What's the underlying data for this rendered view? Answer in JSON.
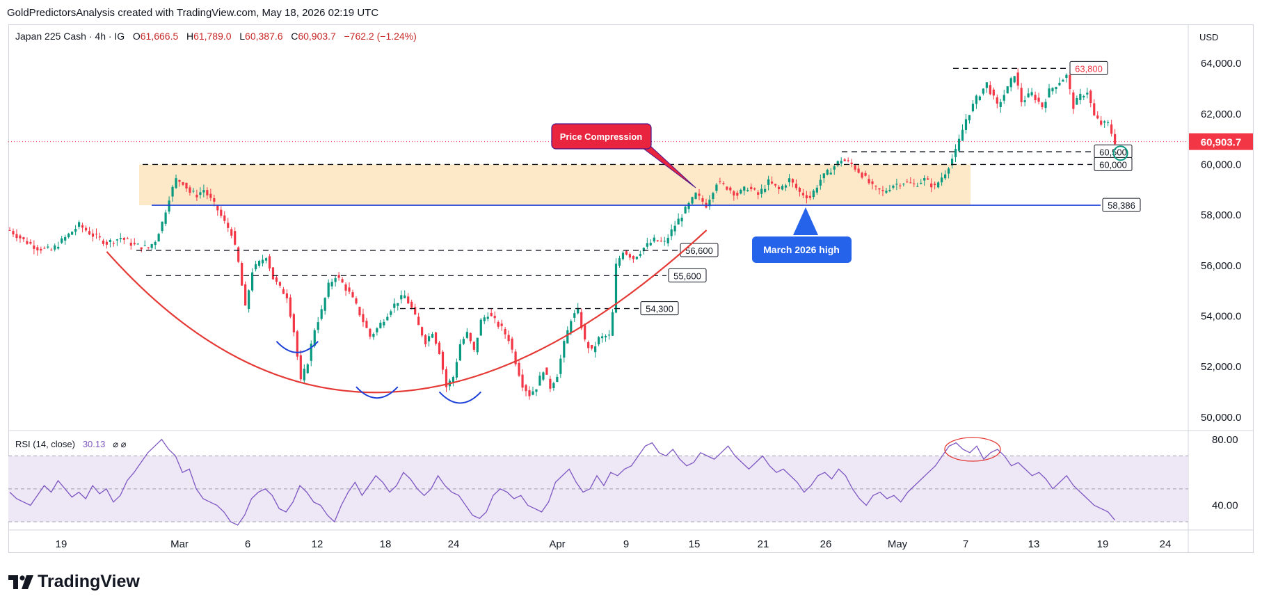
{
  "header": {
    "credit": "GoldPredictorsAnalysis created with TradingView.com, May 18, 2026 02:19 UTC"
  },
  "symbol": {
    "name": "Japan 225 Cash · 4h · IG",
    "open_label": "O",
    "open": "61,666.5",
    "high_label": "H",
    "high": "61,789.0",
    "low_label": "L",
    "low": "60,387.6",
    "close_label": "C",
    "close": "60,903.7",
    "change": "−762.2 (−1.24%)"
  },
  "currency": "USD",
  "rsi": {
    "label": "RSI (14, close)",
    "value": "30.13",
    "extra": "⌀ ⌀"
  },
  "branding": {
    "logo_text": "TradingView"
  },
  "colors": {
    "up": "#089981",
    "down": "#f23645",
    "zone": "#fde8c7",
    "rsi_line": "#7e57c2",
    "rsi_band": "#ede7f6",
    "cup": "#e53935",
    "bowl": "#1e40d8",
    "support": "#1e40d8",
    "last_price": "#f23645"
  },
  "chart_data": [
    {
      "type": "candlestick",
      "title": "",
      "ylim": [
        49500,
        64800
      ],
      "y_ticks": [
        "64,000.0",
        "62,000.0",
        "60,000.0",
        "58,000.0",
        "56,000.0",
        "54,000.0",
        "52,000.0",
        "50,000.0"
      ],
      "y_tick_values": [
        64000,
        62000,
        60000,
        58000,
        56000,
        54000,
        52000,
        50000
      ],
      "x_ticks": [
        "19",
        "Mar",
        "6",
        "12",
        "18",
        "24",
        "Apr",
        "9",
        "15",
        "21",
        "26",
        "May",
        "7",
        "13",
        "19",
        "24"
      ],
      "last_price": 60903.7,
      "last_price_label": "60,903.7",
      "close_path": [
        [
          0,
          57400
        ],
        [
          4,
          57000
        ],
        [
          8,
          56700
        ],
        [
          12,
          56600
        ],
        [
          16,
          57100
        ],
        [
          20,
          57600
        ],
        [
          24,
          57200
        ],
        [
          28,
          56900
        ],
        [
          32,
          57100
        ],
        [
          36,
          56800
        ],
        [
          40,
          56700
        ],
        [
          42,
          57000
        ],
        [
          44,
          57700
        ],
        [
          46,
          58700
        ],
        [
          48,
          59400
        ],
        [
          50,
          59300
        ],
        [
          52,
          58900
        ],
        [
          54,
          58800
        ],
        [
          56,
          59000
        ],
        [
          58,
          58600
        ],
        [
          60,
          58200
        ],
        [
          62,
          57700
        ],
        [
          64,
          57300
        ],
        [
          66,
          56100
        ],
        [
          68,
          54300
        ],
        [
          70,
          55800
        ],
        [
          72,
          56100
        ],
        [
          74,
          56400
        ],
        [
          76,
          55500
        ],
        [
          78,
          55100
        ],
        [
          80,
          54800
        ],
        [
          82,
          53400
        ],
        [
          84,
          51400
        ],
        [
          86,
          52200
        ],
        [
          88,
          53500
        ],
        [
          90,
          54200
        ],
        [
          92,
          55200
        ],
        [
          94,
          55600
        ],
        [
          96,
          55300
        ],
        [
          98,
          54900
        ],
        [
          100,
          54400
        ],
        [
          102,
          53800
        ],
        [
          104,
          53200
        ],
        [
          106,
          53500
        ],
        [
          108,
          53900
        ],
        [
          110,
          54300
        ],
        [
          112,
          54600
        ],
        [
          114,
          54800
        ],
        [
          116,
          54300
        ],
        [
          118,
          53600
        ],
        [
          120,
          53000
        ],
        [
          122,
          53400
        ],
        [
          124,
          52600
        ],
        [
          126,
          51200
        ],
        [
          128,
          51600
        ],
        [
          130,
          52900
        ],
        [
          132,
          53300
        ],
        [
          134,
          52600
        ],
        [
          136,
          53800
        ],
        [
          138,
          54100
        ],
        [
          140,
          53800
        ],
        [
          142,
          53500
        ],
        [
          144,
          53100
        ],
        [
          146,
          52200
        ],
        [
          148,
          51300
        ],
        [
          150,
          50900
        ],
        [
          152,
          51200
        ],
        [
          154,
          51900
        ],
        [
          156,
          51200
        ],
        [
          158,
          51700
        ],
        [
          160,
          52900
        ],
        [
          162,
          53900
        ],
        [
          164,
          54200
        ],
        [
          166,
          53000
        ],
        [
          168,
          52600
        ],
        [
          170,
          53100
        ],
        [
          172,
          53200
        ],
        [
          173,
          53200
        ],
        [
          174,
          54100
        ],
        [
          175,
          56000
        ],
        [
          177,
          56600
        ],
        [
          180,
          56300
        ],
        [
          183,
          56700
        ],
        [
          186,
          57000
        ],
        [
          189,
          56900
        ],
        [
          192,
          57600
        ],
        [
          195,
          58200
        ],
        [
          198,
          58800
        ],
        [
          201,
          58400
        ],
        [
          204,
          59300
        ],
        [
          207,
          59100
        ],
        [
          210,
          58800
        ],
        [
          213,
          59100
        ],
        [
          216,
          58800
        ],
        [
          219,
          59300
        ],
        [
          222,
          59000
        ],
        [
          225,
          59400
        ],
        [
          228,
          58900
        ],
        [
          231,
          58700
        ],
        [
          234,
          59400
        ],
        [
          237,
          59800
        ],
        [
          240,
          60200
        ],
        [
          243,
          60000
        ],
        [
          246,
          59600
        ],
        [
          249,
          59100
        ],
        [
          252,
          58900
        ],
        [
          255,
          59200
        ],
        [
          258,
          59300
        ],
        [
          261,
          59200
        ],
        [
          264,
          59400
        ],
        [
          267,
          59100
        ],
        [
          270,
          59700
        ],
        [
          273,
          60500
        ],
        [
          276,
          61800
        ],
        [
          279,
          62600
        ],
        [
          282,
          63200
        ],
        [
          285,
          62300
        ],
        [
          288,
          63000
        ],
        [
          290,
          63600
        ],
        [
          292,
          62500
        ],
        [
          295,
          62800
        ],
        [
          298,
          62300
        ],
        [
          300,
          62900
        ],
        [
          303,
          63300
        ],
        [
          305,
          63500
        ],
        [
          307,
          62300
        ],
        [
          309,
          62700
        ],
        [
          311,
          62900
        ],
        [
          313,
          61900
        ],
        [
          315,
          61600
        ],
        [
          317,
          61600
        ],
        [
          319,
          60900
        ]
      ],
      "annotations": [
        {
          "text": "Price Compression",
          "style": "callout-red"
        },
        {
          "text": "March 2026 high",
          "style": "callout-blue"
        }
      ],
      "levels": [
        {
          "value": 63800,
          "label": "63,800",
          "style": "dashed",
          "label_color": "#f23645"
        },
        {
          "value": 60500,
          "label": "60,500",
          "style": "dashed"
        },
        {
          "value": 60000,
          "label": "60,000",
          "style": "dashed"
        },
        {
          "value": 58386,
          "label": "58,386",
          "style": "solid-blue"
        },
        {
          "value": 56600,
          "label": "56,600",
          "style": "dashed"
        },
        {
          "value": 55600,
          "label": "55,600",
          "style": "dashed"
        },
        {
          "value": 54300,
          "label": "54,300",
          "style": "dashed"
        }
      ],
      "zone": {
        "from": 58386,
        "to": 60000
      }
    },
    {
      "type": "line",
      "title": "",
      "ylim": [
        25,
        85
      ],
      "y_ticks": [
        "80.00",
        "40.00"
      ],
      "y_tick_values": [
        80,
        40
      ],
      "bands": [
        70,
        50,
        30
      ],
      "series": [
        {
          "values": [
            48,
            44,
            42,
            40,
            46,
            52,
            48,
            55,
            50,
            45,
            48,
            44,
            52,
            47,
            50,
            42,
            46,
            55,
            60,
            66,
            72,
            76,
            80,
            74,
            70,
            60,
            62,
            50,
            44,
            42,
            40,
            36,
            30,
            28,
            34,
            44,
            48,
            50,
            46,
            38,
            36,
            42,
            52,
            48,
            42,
            40,
            34,
            30,
            40,
            48,
            54,
            46,
            52,
            58,
            54,
            48,
            52,
            60,
            56,
            50,
            46,
            50,
            58,
            52,
            48,
            46,
            40,
            34,
            32,
            36,
            46,
            50,
            48,
            44,
            46,
            40,
            38,
            36,
            42,
            54,
            58,
            62,
            54,
            48,
            50,
            58,
            52,
            60,
            58,
            62,
            64,
            70,
            76,
            78,
            72,
            70,
            74,
            68,
            64,
            66,
            72,
            70,
            68,
            72,
            76,
            70,
            66,
            62,
            66,
            70,
            64,
            60,
            62,
            58,
            54,
            48,
            52,
            58,
            60,
            56,
            62,
            58,
            50,
            44,
            40,
            46,
            48,
            44,
            46,
            42,
            48,
            52,
            56,
            60,
            64,
            70,
            76,
            78,
            74,
            72,
            76,
            68,
            72,
            74,
            70,
            64,
            66,
            62,
            58,
            60,
            56,
            50,
            54,
            58,
            52,
            48,
            44,
            40,
            38,
            36,
            31
          ]
        }
      ]
    }
  ]
}
